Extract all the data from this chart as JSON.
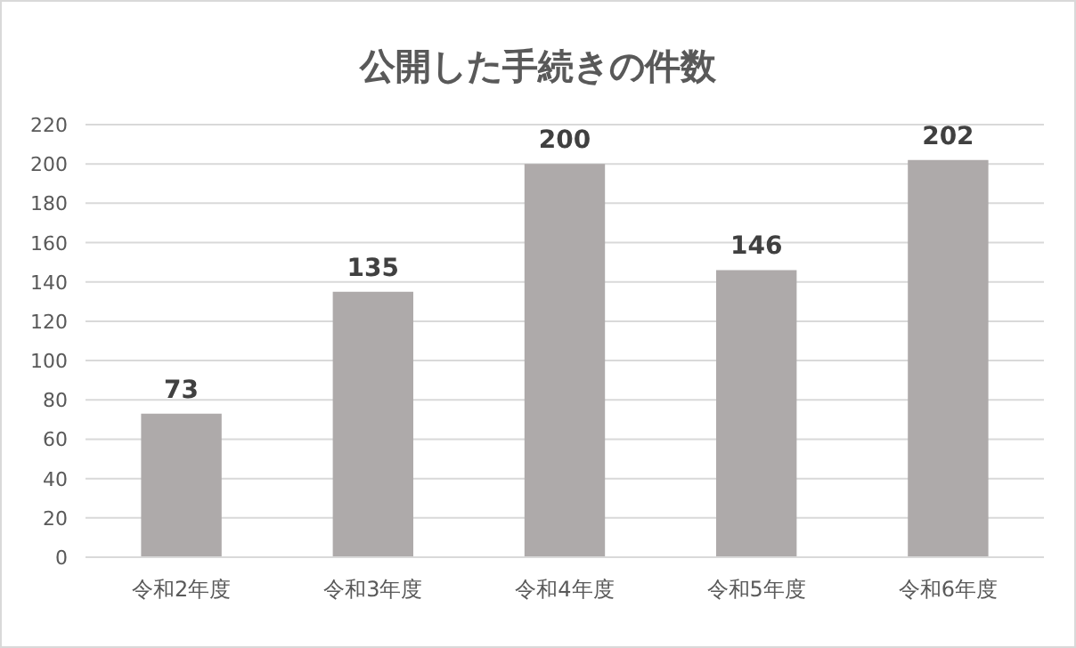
{
  "chart_data": {
    "type": "bar",
    "title": "公開した手続きの件数",
    "categories": [
      "令和2年度",
      "令和3年度",
      "令和4年度",
      "令和5年度",
      "令和6年度"
    ],
    "values": [
      73,
      135,
      200,
      146,
      202
    ],
    "color": "#aeaaaa",
    "ylim": [
      0,
      220
    ],
    "yticks": [
      0,
      20,
      40,
      60,
      80,
      100,
      120,
      140,
      160,
      180,
      200,
      220
    ],
    "grid": "y",
    "data_labels": true
  }
}
